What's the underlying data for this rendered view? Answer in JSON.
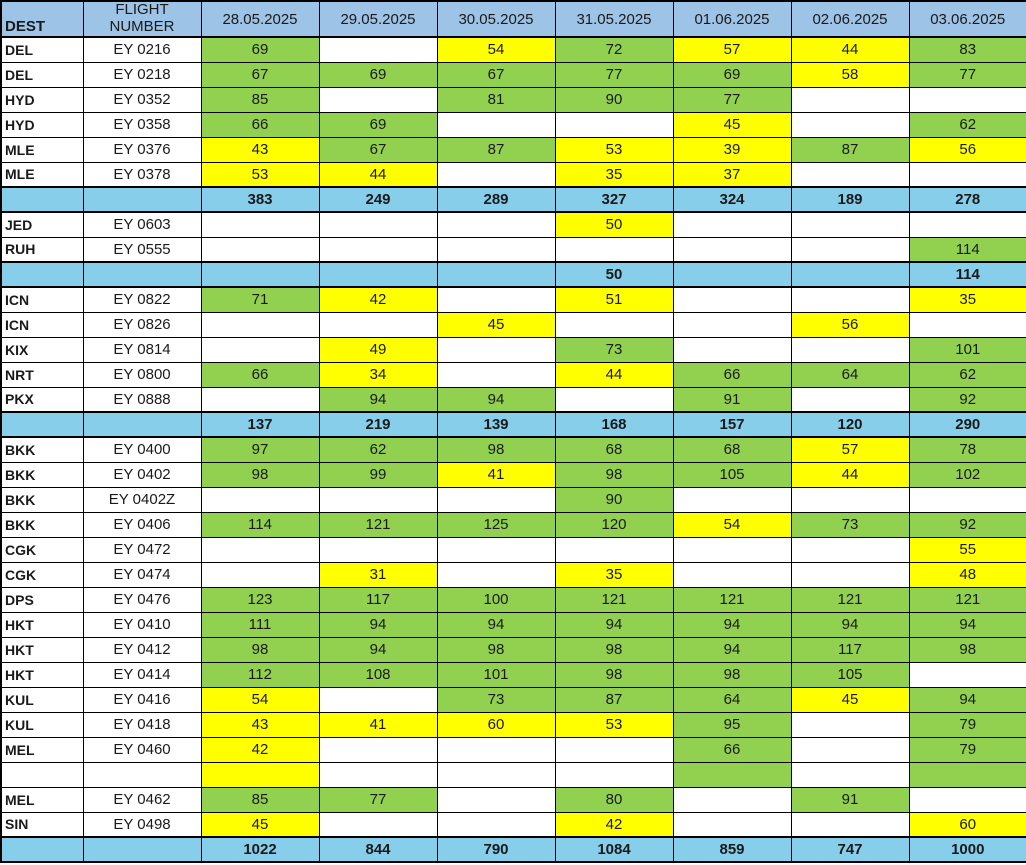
{
  "table": {
    "header": {
      "dest": "DEST",
      "flight": "FLIGHT NUMBER",
      "dates": [
        "28.05.2025",
        "29.05.2025",
        "30.05.2025",
        "31.05.2025",
        "01.06.2025",
        "02.06.2025",
        "03.06.2025"
      ]
    },
    "colors": {
      "header_blue": "#9DC3E6",
      "summary_blue": "#87CEEB",
      "green": "#92D050",
      "yellow": "#FFFF00",
      "border": "#000000"
    },
    "fill_legend": {
      "g": "green",
      "y": "yellow",
      "": "white"
    },
    "rows": [
      {
        "kind": "flight",
        "dest": "DEL",
        "flight": "EY 0216",
        "values": [
          "69",
          "",
          "54",
          "72",
          "57",
          "44",
          "83"
        ],
        "fills": [
          "g",
          "",
          "y",
          "g",
          "y",
          "y",
          "g"
        ]
      },
      {
        "kind": "flight",
        "dest": "DEL",
        "flight": "EY 0218",
        "values": [
          "67",
          "69",
          "67",
          "77",
          "69",
          "58",
          "77"
        ],
        "fills": [
          "g",
          "g",
          "g",
          "g",
          "g",
          "y",
          "g"
        ]
      },
      {
        "kind": "flight",
        "dest": "HYD",
        "flight": "EY 0352",
        "values": [
          "85",
          "",
          "81",
          "90",
          "77",
          "",
          ""
        ],
        "fills": [
          "g",
          "",
          "g",
          "g",
          "g",
          "",
          ""
        ]
      },
      {
        "kind": "flight",
        "dest": "HYD",
        "flight": "EY 0358",
        "values": [
          "66",
          "69",
          "",
          "",
          "45",
          "",
          "62"
        ],
        "fills": [
          "g",
          "g",
          "",
          "",
          "y",
          "",
          "g"
        ]
      },
      {
        "kind": "flight",
        "dest": "MLE",
        "flight": "EY 0376",
        "values": [
          "43",
          "67",
          "87",
          "53",
          "39",
          "87",
          "56"
        ],
        "fills": [
          "y",
          "g",
          "g",
          "y",
          "y",
          "g",
          "y"
        ]
      },
      {
        "kind": "flight",
        "dest": "MLE",
        "flight": "EY 0378",
        "values": [
          "53",
          "44",
          "",
          "35",
          "37",
          "",
          ""
        ],
        "fills": [
          "y",
          "y",
          "",
          "y",
          "y",
          "",
          ""
        ]
      },
      {
        "kind": "subtotal",
        "dest": "",
        "flight": "",
        "values": [
          "383",
          "249",
          "289",
          "327",
          "324",
          "189",
          "278"
        ],
        "fills": [
          "",
          "",
          "",
          "",
          "",
          "",
          ""
        ]
      },
      {
        "kind": "flight",
        "dest": "JED",
        "flight": "EY 0603",
        "values": [
          "",
          "",
          "",
          "50",
          "",
          "",
          ""
        ],
        "fills": [
          "",
          "",
          "",
          "y",
          "",
          "",
          ""
        ]
      },
      {
        "kind": "flight",
        "dest": "RUH",
        "flight": "EY 0555",
        "values": [
          "",
          "",
          "",
          "",
          "",
          "",
          "114"
        ],
        "fills": [
          "",
          "",
          "",
          "",
          "",
          "",
          "g"
        ]
      },
      {
        "kind": "subtotal",
        "dest": "",
        "flight": "",
        "values": [
          "",
          "",
          "",
          "50",
          "",
          "",
          "114"
        ],
        "fills": [
          "",
          "",
          "",
          "",
          "",
          "",
          ""
        ]
      },
      {
        "kind": "flight",
        "dest": "ICN",
        "flight": "EY 0822",
        "values": [
          "71",
          "42",
          "",
          "51",
          "",
          "",
          "35"
        ],
        "fills": [
          "g",
          "y",
          "",
          "y",
          "",
          "",
          "y"
        ]
      },
      {
        "kind": "flight",
        "dest": "ICN",
        "flight": "EY 0826",
        "values": [
          "",
          "",
          "45",
          "",
          "",
          "56",
          ""
        ],
        "fills": [
          "",
          "",
          "y",
          "",
          "",
          "y",
          ""
        ]
      },
      {
        "kind": "flight",
        "dest": "KIX",
        "flight": "EY 0814",
        "values": [
          "",
          "49",
          "",
          "73",
          "",
          "",
          "101"
        ],
        "fills": [
          "",
          "y",
          "",
          "g",
          "",
          "",
          "g"
        ]
      },
      {
        "kind": "flight",
        "dest": "NRT",
        "flight": "EY 0800",
        "values": [
          "66",
          "34",
          "",
          "44",
          "66",
          "64",
          "62"
        ],
        "fills": [
          "g",
          "y",
          "",
          "y",
          "g",
          "g",
          "g"
        ]
      },
      {
        "kind": "flight",
        "dest": "PKX",
        "flight": "EY 0888",
        "values": [
          "",
          "94",
          "94",
          "",
          "91",
          "",
          "92"
        ],
        "fills": [
          "",
          "g",
          "g",
          "",
          "g",
          "",
          "g"
        ]
      },
      {
        "kind": "subtotal",
        "dest": "",
        "flight": "",
        "values": [
          "137",
          "219",
          "139",
          "168",
          "157",
          "120",
          "290"
        ],
        "fills": [
          "",
          "",
          "",
          "",
          "",
          "",
          ""
        ]
      },
      {
        "kind": "flight",
        "dest": "BKK",
        "flight": "EY 0400",
        "values": [
          "97",
          "62",
          "98",
          "68",
          "68",
          "57",
          "78"
        ],
        "fills": [
          "g",
          "g",
          "g",
          "g",
          "g",
          "y",
          "g"
        ]
      },
      {
        "kind": "flight",
        "dest": "BKK",
        "flight": "EY 0402",
        "values": [
          "98",
          "99",
          "41",
          "98",
          "105",
          "44",
          "102"
        ],
        "fills": [
          "g",
          "g",
          "y",
          "g",
          "g",
          "y",
          "g"
        ]
      },
      {
        "kind": "flight",
        "dest": "BKK",
        "flight": "EY 0402Z",
        "values": [
          "",
          "",
          "",
          "90",
          "",
          "",
          ""
        ],
        "fills": [
          "",
          "",
          "",
          "g",
          "",
          "",
          ""
        ]
      },
      {
        "kind": "flight",
        "dest": "BKK",
        "flight": "EY 0406",
        "values": [
          "114",
          "121",
          "125",
          "120",
          "54",
          "73",
          "92"
        ],
        "fills": [
          "g",
          "g",
          "g",
          "g",
          "y",
          "g",
          "g"
        ]
      },
      {
        "kind": "flight",
        "dest": "CGK",
        "flight": "EY 0472",
        "values": [
          "",
          "",
          "",
          "",
          "",
          "",
          "55"
        ],
        "fills": [
          "",
          "",
          "",
          "",
          "",
          "",
          "y"
        ]
      },
      {
        "kind": "flight",
        "dest": "CGK",
        "flight": "EY 0474",
        "values": [
          "",
          "31",
          "",
          "35",
          "",
          "",
          "48"
        ],
        "fills": [
          "",
          "y",
          "",
          "y",
          "",
          "",
          "y"
        ]
      },
      {
        "kind": "flight",
        "dest": "DPS",
        "flight": "EY 0476",
        "values": [
          "123",
          "117",
          "100",
          "121",
          "121",
          "121",
          "121"
        ],
        "fills": [
          "g",
          "g",
          "g",
          "g",
          "g",
          "g",
          "g"
        ]
      },
      {
        "kind": "flight",
        "dest": "HKT",
        "flight": "EY 0410",
        "values": [
          "111",
          "94",
          "94",
          "94",
          "94",
          "94",
          "94"
        ],
        "fills": [
          "g",
          "g",
          "g",
          "g",
          "g",
          "g",
          "g"
        ]
      },
      {
        "kind": "flight",
        "dest": "HKT",
        "flight": "EY 0412",
        "values": [
          "98",
          "94",
          "98",
          "98",
          "94",
          "117",
          "98"
        ],
        "fills": [
          "g",
          "g",
          "g",
          "g",
          "g",
          "g",
          "g"
        ]
      },
      {
        "kind": "flight",
        "dest": "HKT",
        "flight": "EY 0414",
        "values": [
          "112",
          "108",
          "101",
          "98",
          "98",
          "105",
          ""
        ],
        "fills": [
          "g",
          "g",
          "g",
          "g",
          "g",
          "g",
          ""
        ]
      },
      {
        "kind": "flight",
        "dest": "KUL",
        "flight": "EY 0416",
        "values": [
          "54",
          "",
          "73",
          "87",
          "64",
          "45",
          "94"
        ],
        "fills": [
          "y",
          "",
          "g",
          "g",
          "g",
          "y",
          "g"
        ]
      },
      {
        "kind": "flight",
        "dest": "KUL",
        "flight": "EY 0418",
        "values": [
          "43",
          "41",
          "60",
          "53",
          "95",
          "",
          "79"
        ],
        "fills": [
          "y",
          "y",
          "y",
          "y",
          "g",
          "",
          "g"
        ]
      },
      {
        "kind": "flight",
        "dest": "MEL",
        "flight": "EY 0460",
        "values": [
          "42",
          "",
          "",
          "",
          "66",
          "",
          "79"
        ],
        "fills": [
          "y",
          "",
          "",
          "",
          "g",
          "",
          "g"
        ]
      },
      {
        "kind": "flight",
        "dest": "",
        "flight": "",
        "values": [
          "",
          "",
          "",
          "",
          "",
          "",
          ""
        ],
        "fills": [
          "y",
          "",
          "",
          "",
          "g",
          "",
          "g"
        ]
      },
      {
        "kind": "flight",
        "dest": "MEL",
        "flight": "EY 0462",
        "values": [
          "85",
          "77",
          "",
          "80",
          "",
          "91",
          ""
        ],
        "fills": [
          "g",
          "g",
          "",
          "g",
          "",
          "g",
          ""
        ]
      },
      {
        "kind": "flight",
        "dest": "SIN",
        "flight": "EY 0498",
        "values": [
          "45",
          "",
          "",
          "42",
          "",
          "",
          "60"
        ],
        "fills": [
          "y",
          "",
          "",
          "y",
          "",
          "",
          "y"
        ]
      },
      {
        "kind": "total",
        "dest": "",
        "flight": "",
        "values": [
          "1022",
          "844",
          "790",
          "1084",
          "859",
          "747",
          "1000"
        ],
        "fills": [
          "",
          "",
          "",
          "",
          "",
          "",
          ""
        ]
      }
    ]
  }
}
